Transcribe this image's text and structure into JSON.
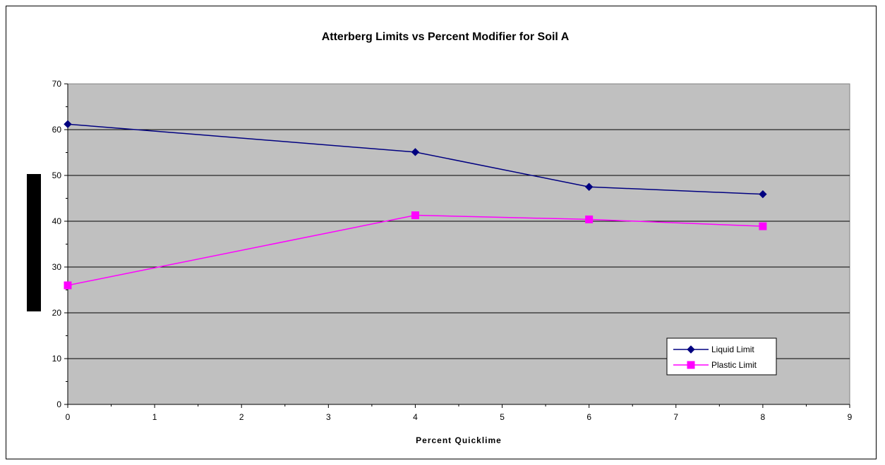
{
  "chart_data": {
    "type": "line",
    "title": "Atterberg Limits vs Percent Modifier for Soil A",
    "xlabel": "Percent Quicklime",
    "ylabel": "",
    "xlim": [
      0,
      9
    ],
    "ylim": [
      0,
      70
    ],
    "x_ticks": [
      "0",
      "1",
      "2",
      "3",
      "4",
      "5",
      "6",
      "7",
      "8",
      "9"
    ],
    "y_ticks": [
      "0",
      "10",
      "20",
      "30",
      "40",
      "50",
      "60",
      "70"
    ],
    "grid": "horizontal",
    "plot_background": "#c0c0c0",
    "legend_position": "bottom-right",
    "series": [
      {
        "name": "Liquid Limit",
        "color": "#000080",
        "marker": "diamond",
        "x": [
          0,
          4,
          6,
          8
        ],
        "y": [
          61.2,
          55.1,
          47.5,
          45.9
        ]
      },
      {
        "name": "Plastic Limit",
        "color": "#ff00ff",
        "marker": "square",
        "x": [
          0,
          4,
          6,
          8
        ],
        "y": [
          26.0,
          41.3,
          40.4,
          38.9
        ]
      }
    ]
  }
}
